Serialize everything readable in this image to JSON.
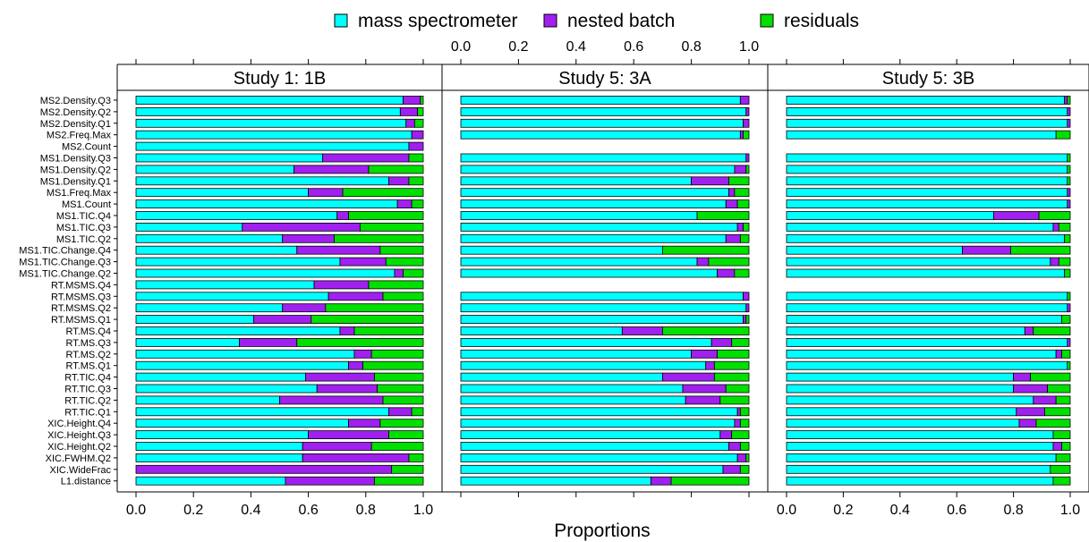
{
  "chart_data": {
    "type": "stacked_bar_horizontal",
    "legend": {
      "position": "top",
      "items": [
        {
          "name": "mass spectrometer",
          "color": "#00ffff"
        },
        {
          "name": "nested batch",
          "color": "#a020f0"
        },
        {
          "name": "residuals",
          "color": "#00e000"
        }
      ]
    },
    "xlabel": "Proportions",
    "xlim": [
      0,
      1
    ],
    "xticks": [
      "0.0",
      "0.2",
      "0.4",
      "0.6",
      "0.8",
      "1.0"
    ],
    "grid": false,
    "categories": [
      "MS2.Density.Q3",
      "MS2.Density.Q2",
      "MS2.Density.Q1",
      "MS2.Freq.Max",
      "MS2.Count",
      "MS1.Density.Q3",
      "MS1.Density.Q2",
      "MS1.Density.Q1",
      "MS1.Freq.Max",
      "MS1.Count",
      "MS1.TIC.Q4",
      "MS1.TIC.Q3",
      "MS1.TIC.Q2",
      "MS1.TIC.Change.Q4",
      "MS1.TIC.Change.Q3",
      "MS1.TIC.Change.Q2",
      "RT.MSMS.Q4",
      "RT.MSMS.Q3",
      "RT.MSMS.Q2",
      "RT.MSMS.Q1",
      "RT.MS.Q4",
      "RT.MS.Q3",
      "RT.MS.Q2",
      "RT.MS.Q1",
      "RT.TIC.Q4",
      "RT.TIC.Q3",
      "RT.TIC.Q2",
      "RT.TIC.Q1",
      "XIC.Height.Q4",
      "XIC.Height.Q3",
      "XIC.Height.Q2",
      "XIC.FWHM.Q2",
      "XIC.WideFrac",
      "L1.distance"
    ],
    "panels": [
      {
        "title": "Study 1: 1B",
        "values": [
          [
            0.93,
            0.06,
            0.01
          ],
          [
            0.92,
            0.06,
            0.02
          ],
          [
            0.94,
            0.03,
            0.03
          ],
          [
            0.96,
            0.04,
            0.0
          ],
          [
            0.95,
            0.05,
            0.0
          ],
          [
            0.65,
            0.3,
            0.05
          ],
          [
            0.55,
            0.26,
            0.19
          ],
          [
            0.88,
            0.07,
            0.05
          ],
          [
            0.6,
            0.12,
            0.28
          ],
          [
            0.91,
            0.05,
            0.04
          ],
          [
            0.7,
            0.04,
            0.26
          ],
          [
            0.37,
            0.41,
            0.22
          ],
          [
            0.51,
            0.18,
            0.31
          ],
          [
            0.56,
            0.29,
            0.15
          ],
          [
            0.71,
            0.16,
            0.13
          ],
          [
            0.9,
            0.03,
            0.07
          ],
          [
            0.62,
            0.19,
            0.19
          ],
          [
            0.67,
            0.19,
            0.14
          ],
          [
            0.51,
            0.15,
            0.34
          ],
          [
            0.41,
            0.2,
            0.39
          ],
          [
            0.71,
            0.05,
            0.24
          ],
          [
            0.36,
            0.2,
            0.44
          ],
          [
            0.76,
            0.06,
            0.18
          ],
          [
            0.74,
            0.05,
            0.21
          ],
          [
            0.59,
            0.24,
            0.17
          ],
          [
            0.63,
            0.21,
            0.16
          ],
          [
            0.5,
            0.36,
            0.14
          ],
          [
            0.88,
            0.08,
            0.04
          ],
          [
            0.74,
            0.11,
            0.15
          ],
          [
            0.6,
            0.28,
            0.12
          ],
          [
            0.58,
            0.24,
            0.18
          ],
          [
            0.58,
            0.37,
            0.05
          ],
          [
            0.0,
            0.89,
            0.11
          ],
          [
            0.52,
            0.31,
            0.17
          ]
        ]
      },
      {
        "title": "Study 5: 3A",
        "values": [
          [
            0.97,
            0.03,
            0.0
          ],
          [
            0.99,
            0.01,
            0.0
          ],
          [
            0.98,
            0.02,
            0.0
          ],
          [
            0.97,
            0.01,
            0.02
          ],
          null,
          [
            0.99,
            0.01,
            0.0
          ],
          [
            0.95,
            0.04,
            0.01
          ],
          [
            0.8,
            0.13,
            0.07
          ],
          [
            0.93,
            0.02,
            0.05
          ],
          [
            0.92,
            0.04,
            0.04
          ],
          [
            0.82,
            0.0,
            0.18
          ],
          [
            0.96,
            0.02,
            0.02
          ],
          [
            0.92,
            0.05,
            0.03
          ],
          [
            0.7,
            0.0,
            0.3
          ],
          [
            0.82,
            0.04,
            0.14
          ],
          [
            0.89,
            0.06,
            0.05
          ],
          null,
          [
            0.98,
            0.02,
            0.0
          ],
          [
            0.99,
            0.01,
            0.0
          ],
          [
            0.98,
            0.01,
            0.01
          ],
          [
            0.56,
            0.14,
            0.3
          ],
          [
            0.87,
            0.07,
            0.06
          ],
          [
            0.8,
            0.09,
            0.11
          ],
          [
            0.85,
            0.03,
            0.12
          ],
          [
            0.7,
            0.18,
            0.12
          ],
          [
            0.77,
            0.15,
            0.08
          ],
          [
            0.78,
            0.12,
            0.1
          ],
          [
            0.96,
            0.01,
            0.03
          ],
          [
            0.95,
            0.02,
            0.03
          ],
          [
            0.9,
            0.04,
            0.06
          ],
          [
            0.93,
            0.04,
            0.03
          ],
          [
            0.96,
            0.03,
            0.01
          ],
          [
            0.91,
            0.06,
            0.03
          ],
          [
            0.66,
            0.07,
            0.27
          ]
        ]
      },
      {
        "title": "Study 5: 3B",
        "values": [
          [
            0.98,
            0.01,
            0.01
          ],
          [
            0.99,
            0.01,
            0.0
          ],
          [
            0.99,
            0.01,
            0.0
          ],
          [
            0.95,
            0.0,
            0.05
          ],
          null,
          [
            0.99,
            0.0,
            0.01
          ],
          [
            0.99,
            0.0,
            0.01
          ],
          [
            0.99,
            0.0,
            0.01
          ],
          [
            0.99,
            0.01,
            0.0
          ],
          [
            0.99,
            0.01,
            0.0
          ],
          [
            0.73,
            0.16,
            0.11
          ],
          [
            0.94,
            0.02,
            0.04
          ],
          [
            0.98,
            0.0,
            0.02
          ],
          [
            0.62,
            0.17,
            0.21
          ],
          [
            0.93,
            0.03,
            0.04
          ],
          [
            0.98,
            0.0,
            0.02
          ],
          null,
          [
            0.99,
            0.0,
            0.01
          ],
          [
            0.99,
            0.01,
            0.0
          ],
          [
            0.97,
            0.0,
            0.03
          ],
          [
            0.84,
            0.03,
            0.13
          ],
          [
            0.99,
            0.01,
            0.0
          ],
          [
            0.95,
            0.02,
            0.03
          ],
          [
            0.99,
            0.0,
            0.01
          ],
          [
            0.8,
            0.06,
            0.14
          ],
          [
            0.8,
            0.12,
            0.08
          ],
          [
            0.87,
            0.08,
            0.05
          ],
          [
            0.81,
            0.1,
            0.09
          ],
          [
            0.82,
            0.06,
            0.12
          ],
          [
            0.94,
            0.0,
            0.06
          ],
          [
            0.94,
            0.03,
            0.03
          ],
          [
            0.95,
            0.0,
            0.05
          ],
          [
            0.93,
            0.0,
            0.07
          ],
          [
            0.94,
            0.0,
            0.06
          ]
        ]
      }
    ]
  }
}
